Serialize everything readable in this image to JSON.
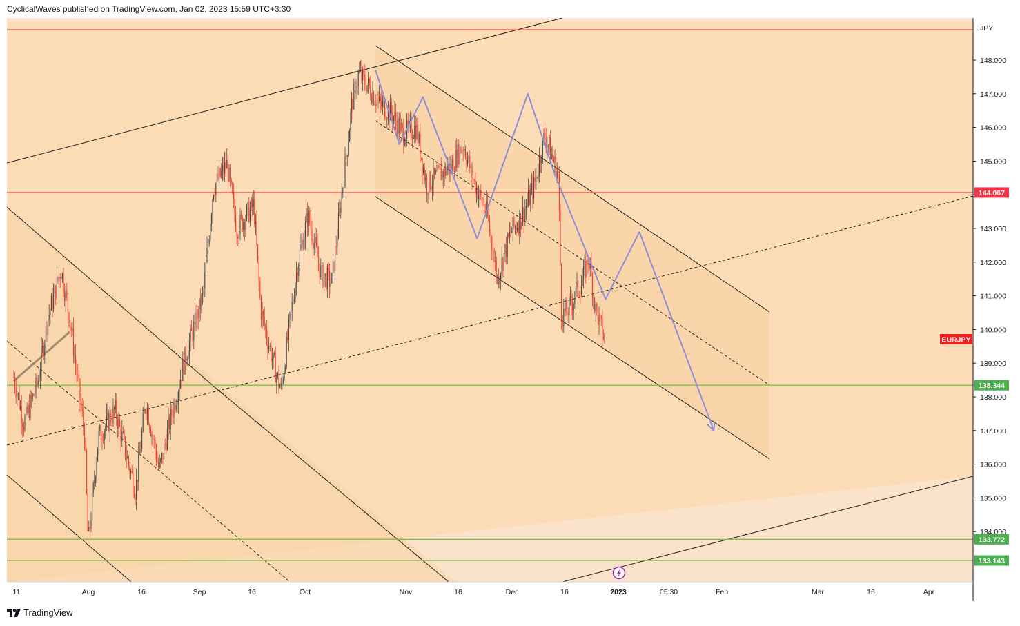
{
  "header": {
    "publish_line": "CyclicalWaves published on TradingView.com, Jan 02, 2023 15:59 UTC+3:30"
  },
  "footer": {
    "brand": "TradingView"
  },
  "colors": {
    "background_outer": "#fbe3cb",
    "background_main": "#fbdcb7",
    "channel_fill": "#fad2a4",
    "candle_up": "#4a4a4a",
    "candle_down": "#f23a2a",
    "red_line": "#f05a5a",
    "green_line": "#7ec04b",
    "projection": "#8c8ed6",
    "trend_line": "#1e1e1e",
    "symbol_badge": "#f21f1f",
    "green_badge": "#4caf50",
    "red_badge": "#f23645"
  },
  "chart_data": {
    "type": "candlestick",
    "symbol": "EURJPY",
    "currency": "JPY",
    "y_axis": {
      "range": [
        132.8,
        149.1
      ],
      "ticks": [
        "134.000",
        "135.000",
        "136.000",
        "137.000",
        "138.000",
        "139.000",
        "140.000",
        "141.000",
        "142.000",
        "143.000",
        "144.000",
        "145.000",
        "146.000",
        "147.000",
        "148.000"
      ]
    },
    "x_axis": {
      "labels": [
        "11",
        "Aug",
        "16",
        "Sep",
        "16",
        "Oct",
        "Nov",
        "16",
        "Dec",
        "16",
        "2023",
        "05:30",
        "Feb",
        "Mar",
        "16",
        "Apr"
      ]
    },
    "price_badges": [
      {
        "label": "144.067",
        "value": 144.067,
        "kind": "red"
      },
      {
        "label": "138.344",
        "value": 138.344,
        "kind": "green"
      },
      {
        "label": "133.772",
        "value": 133.772,
        "kind": "green"
      },
      {
        "label": "133.143",
        "value": 133.143,
        "kind": "green"
      }
    ],
    "horizontal_levels": [
      {
        "value": 148.9,
        "kind": "red"
      },
      {
        "value": 144.067,
        "kind": "red"
      },
      {
        "value": 138.344,
        "kind": "green"
      },
      {
        "value": 133.772,
        "kind": "green"
      },
      {
        "value": 133.143,
        "kind": "green"
      }
    ],
    "candles_close_path": [
      {
        "date": "2022-07-11",
        "close": 138.6
      },
      {
        "date": "2022-07-14",
        "close": 137.2
      },
      {
        "date": "2022-07-18",
        "close": 138.4
      },
      {
        "date": "2022-07-21",
        "close": 140.3
      },
      {
        "date": "2022-07-25",
        "close": 141.8
      },
      {
        "date": "2022-07-28",
        "close": 140.0
      },
      {
        "date": "2022-08-01",
        "close": 136.8
      },
      {
        "date": "2022-08-02",
        "close": 133.6
      },
      {
        "date": "2022-08-05",
        "close": 136.8
      },
      {
        "date": "2022-08-10",
        "close": 137.6
      },
      {
        "date": "2022-08-16",
        "close": 135.2
      },
      {
        "date": "2022-08-19",
        "close": 137.9
      },
      {
        "date": "2022-08-23",
        "close": 135.8
      },
      {
        "date": "2022-08-26",
        "close": 137.2
      },
      {
        "date": "2022-08-31",
        "close": 139.3
      },
      {
        "date": "2022-09-05",
        "close": 141.0
      },
      {
        "date": "2022-09-08",
        "close": 144.2
      },
      {
        "date": "2022-09-12",
        "close": 144.9
      },
      {
        "date": "2022-09-15",
        "close": 143.0
      },
      {
        "date": "2022-09-20",
        "close": 143.7
      },
      {
        "date": "2022-09-22",
        "close": 140.6
      },
      {
        "date": "2022-09-26",
        "close": 138.9
      },
      {
        "date": "2022-09-28",
        "close": 138.2
      },
      {
        "date": "2022-10-03",
        "close": 142.0
      },
      {
        "date": "2022-10-06",
        "close": 143.4
      },
      {
        "date": "2022-10-10",
        "close": 141.6
      },
      {
        "date": "2022-10-13",
        "close": 141.4
      },
      {
        "date": "2022-10-17",
        "close": 144.9
      },
      {
        "date": "2022-10-19",
        "close": 146.7
      },
      {
        "date": "2022-10-21",
        "close": 147.6
      },
      {
        "date": "2022-10-24",
        "close": 147.2
      },
      {
        "date": "2022-10-27",
        "close": 146.7
      },
      {
        "date": "2022-10-31",
        "close": 146.4
      },
      {
        "date": "2022-11-03",
        "close": 145.8
      },
      {
        "date": "2022-11-07",
        "close": 146.0
      },
      {
        "date": "2022-11-10",
        "close": 144.3
      },
      {
        "date": "2022-11-14",
        "close": 144.6
      },
      {
        "date": "2022-11-17",
        "close": 144.8
      },
      {
        "date": "2022-11-21",
        "close": 145.5
      },
      {
        "date": "2022-11-24",
        "close": 144.4
      },
      {
        "date": "2022-11-28",
        "close": 143.4
      },
      {
        "date": "2022-12-01",
        "close": 141.5
      },
      {
        "date": "2022-12-05",
        "close": 142.9
      },
      {
        "date": "2022-12-08",
        "close": 143.3
      },
      {
        "date": "2022-12-12",
        "close": 144.3
      },
      {
        "date": "2022-12-15",
        "close": 145.8
      },
      {
        "date": "2022-12-19",
        "close": 144.6
      },
      {
        "date": "2022-12-20",
        "close": 140.4
      },
      {
        "date": "2022-12-22",
        "close": 140.6
      },
      {
        "date": "2022-12-26",
        "close": 141.4
      },
      {
        "date": "2022-12-28",
        "close": 142.1
      },
      {
        "date": "2022-12-30",
        "close": 140.6
      },
      {
        "date": "2023-01-02",
        "close": 139.6
      }
    ],
    "projection_path": [
      {
        "date": "2022-10-26",
        "price": 147.7
      },
      {
        "date": "2022-11-02",
        "price": 145.5
      },
      {
        "date": "2022-11-09",
        "price": 146.9
      },
      {
        "date": "2022-11-25",
        "price": 142.7
      },
      {
        "date": "2022-12-10",
        "price": 147.0
      },
      {
        "date": "2022-12-18",
        "price": 144.6
      },
      {
        "date": "2023-01-02",
        "price": 140.9
      },
      {
        "date": "2023-01-12",
        "price": 142.9
      },
      {
        "date": "2023-02-03",
        "price": 137.0
      }
    ],
    "legend": "none",
    "grid": false
  }
}
